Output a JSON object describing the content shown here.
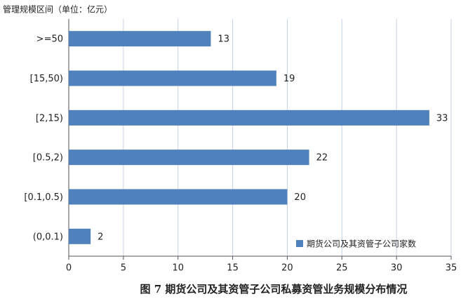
{
  "chart_data": {
    "type": "bar",
    "orientation": "horizontal",
    "title": "图 7   期货公司及其资管子公司私募资管业务规模分布情况",
    "y_label": "管理规模区间（单位：亿元）",
    "categories": [
      ">=50",
      "[15,50)",
      "[2,15)",
      "[0.5,2)",
      "[0.1,0.5)",
      "(0,0.1)"
    ],
    "series": [
      {
        "name": "期货公司及其资管子公司家数",
        "color": "#4f81bd",
        "values": [
          13,
          19,
          33,
          22,
          20,
          2
        ]
      }
    ],
    "xlim": [
      0,
      35
    ],
    "xticks": [
      0,
      5,
      10,
      15,
      20,
      25,
      30,
      35
    ],
    "grid": true,
    "legend": "lower right"
  }
}
